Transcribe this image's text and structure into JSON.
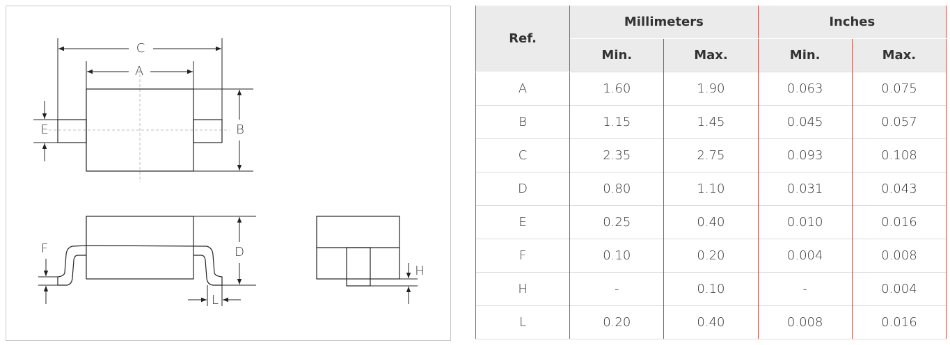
{
  "diagram": {
    "labels": [
      "C",
      "A",
      "E",
      "B",
      "F",
      "D",
      "L",
      "H"
    ]
  },
  "table": {
    "header": {
      "ref": "Ref.",
      "groups": [
        "Millimeters",
        "Inches"
      ],
      "sub": [
        "Min.",
        "Max.",
        "Min.",
        "Max."
      ]
    },
    "rows": [
      [
        "A",
        "1.60",
        "1.90",
        "0.063",
        "0.075"
      ],
      [
        "B",
        "1.15",
        "1.45",
        "0.045",
        "0.057"
      ],
      [
        "C",
        "2.35",
        "2.75",
        "0.093",
        "0.108"
      ],
      [
        "D",
        "0.80",
        "1.10",
        "0.031",
        "0.043"
      ],
      [
        "E",
        "0.25",
        "0.40",
        "0.010",
        "0.016"
      ],
      [
        "F",
        "0.10",
        "0.20",
        "0.004",
        "0.008"
      ],
      [
        "H",
        "-",
        "0.10",
        "-",
        "0.004"
      ],
      [
        "L",
        "0.20",
        "0.40",
        "0.008",
        "0.016"
      ]
    ]
  }
}
